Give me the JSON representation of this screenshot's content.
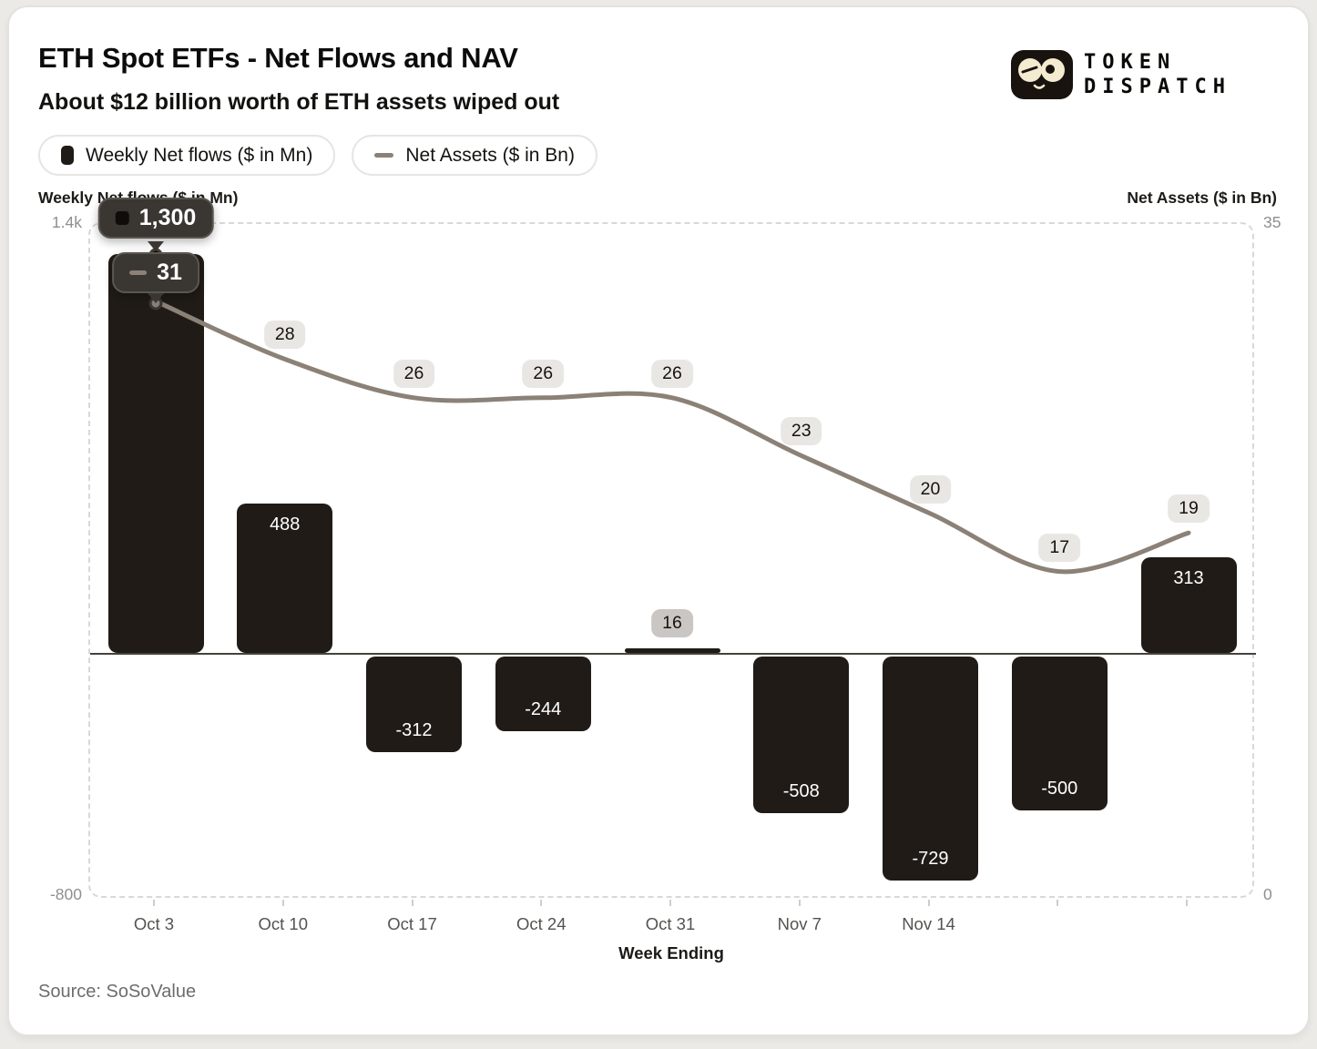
{
  "header": {
    "title": "ETH Spot ETFs - Net Flows and NAV",
    "subtitle": "About $12 billion worth of ETH assets wiped out"
  },
  "logo": {
    "line1": "TOKEN",
    "line2": "DISPATCH",
    "icon": "winking-face-with-glasses"
  },
  "legend": {
    "items": [
      {
        "label": "Weekly Net flows ($ in Mn)",
        "marker": "bar-swatch"
      },
      {
        "label": "Net Assets ($ in Bn)",
        "marker": "line-dash"
      }
    ]
  },
  "axes": {
    "left_title": "Weekly Net flows ($ in Mn)",
    "right_title": "Net Assets ($ in Bn)",
    "left_top_tick": "1.4k",
    "left_bottom_tick": "-800",
    "right_top_tick": "35",
    "right_bottom_tick": "0",
    "x_title": "Week Ending"
  },
  "tooltips": {
    "flow_value": "1,300",
    "nav_value": "31"
  },
  "footer": {
    "source": "Source: SoSoValue"
  },
  "colors": {
    "bar": "#201b17",
    "line": "#8b8177",
    "zero_line": "#45423e",
    "badge_bg": "#e9e7e4",
    "badge16_bg": "#c9c6c3",
    "badge_text": "#16130f",
    "tooltip_bg": "#3a3733",
    "tooltip_border": "#5a5650",
    "axis_text": "#918f8c",
    "x_label": "#55534f",
    "logo_dark": "#18130f",
    "logo_cream": "#f4ebd0"
  },
  "chart_data": {
    "type": "bar+line",
    "title": "ETH Spot ETFs - Net Flows and NAV",
    "subtitle": "About $12 billion worth of ETH assets wiped out",
    "source": "SoSoValue",
    "x_axis_title": "Week Ending",
    "categories": [
      "Oct 3",
      "Oct 10",
      "Oct 17",
      "Oct 24",
      "Oct 31",
      "Nov 7",
      "Nov 14",
      "",
      ""
    ],
    "visible_x_labels": [
      "Oct 3",
      "Oct 10",
      "Oct 17",
      "Oct 24",
      "Oct 31",
      "Nov 7",
      "Nov 14"
    ],
    "series": [
      {
        "name": "Weekly Net flows ($ in Mn)",
        "type": "bar",
        "axis": "left",
        "ylim": [
          -800,
          1400
        ],
        "values": [
          1300,
          488,
          -312,
          -244,
          16,
          -508,
          -729,
          -500,
          313
        ],
        "labels": [
          "1,300",
          "488",
          "-312",
          "-244",
          "16",
          "-508",
          "-729",
          "-500",
          "313"
        ]
      },
      {
        "name": "Net Assets ($ in Bn)",
        "type": "line",
        "axis": "right",
        "ylim": [
          0,
          35
        ],
        "values": [
          31,
          28,
          26,
          26,
          26,
          23,
          20,
          17,
          19
        ],
        "labels": [
          "31",
          "28",
          "26",
          "26",
          "26",
          "23",
          "20",
          "17",
          "19"
        ]
      }
    ],
    "legend_position": "top-left",
    "grid": false,
    "highlighted_point": {
      "category": "Oct 3",
      "flow": "1,300",
      "nav": "31"
    }
  }
}
